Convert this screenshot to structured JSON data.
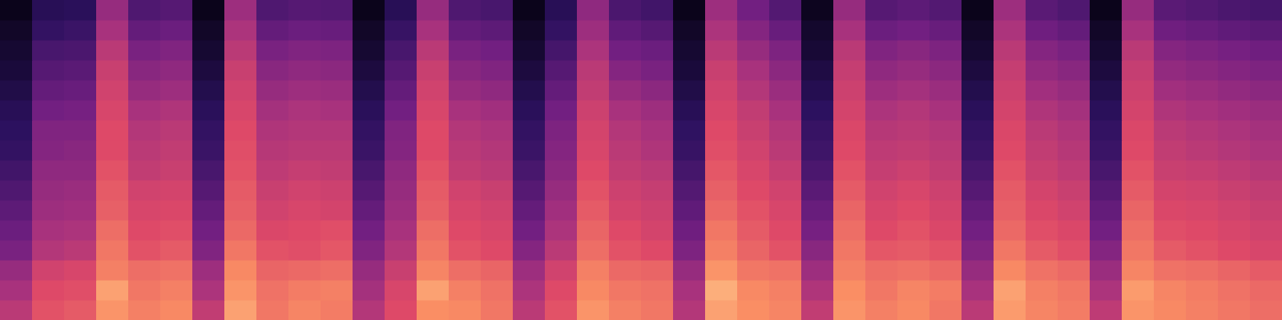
{
  "chart_data": {
    "type": "heatmap",
    "tick_labels": false,
    "color_range": [
      0,
      100
    ],
    "cells": [
      [
        60,
        72,
        74,
        86,
        82,
        84,
        62,
        88,
        80,
        83,
        81,
        58,
        70,
        85,
        84,
        80,
        60,
        72,
        86,
        82,
        80,
        58,
        88,
        85,
        83,
        62,
        86,
        82,
        84,
        80,
        60,
        87,
        83,
        81,
        61,
        86,
        84,
        82,
        80,
        78
      ],
      [
        55,
        70,
        71,
        88,
        80,
        82,
        56,
        86,
        79,
        81,
        82,
        54,
        68,
        88,
        82,
        79,
        56,
        70,
        84,
        80,
        79,
        55,
        90,
        84,
        82,
        57,
        85,
        80,
        83,
        81,
        55,
        88,
        82,
        80,
        56,
        87,
        83,
        81,
        79,
        77
      ],
      [
        50,
        66,
        68,
        82,
        78,
        79,
        52,
        84,
        76,
        77,
        78,
        50,
        64,
        83,
        78,
        76,
        52,
        66,
        82,
        77,
        76,
        50,
        86,
        80,
        79,
        52,
        82,
        78,
        79,
        77,
        50,
        84,
        79,
        77,
        51,
        83,
        79,
        78,
        76,
        74
      ],
      [
        42,
        58,
        60,
        80,
        72,
        74,
        44,
        80,
        72,
        71,
        73,
        44,
        58,
        80,
        72,
        70,
        45,
        60,
        78,
        72,
        70,
        43,
        82,
        76,
        72,
        46,
        80,
        73,
        74,
        72,
        44,
        80,
        74,
        71,
        45,
        80,
        74,
        72,
        70,
        68
      ],
      [
        38,
        55,
        56,
        78,
        70,
        71,
        40,
        77,
        69,
        70,
        71,
        40,
        55,
        78,
        70,
        68,
        40,
        56,
        76,
        70,
        67,
        39,
        80,
        74,
        70,
        41,
        78,
        70,
        72,
        69,
        40,
        77,
        71,
        69,
        40,
        78,
        71,
        70,
        68,
        66
      ],
      [
        34,
        52,
        53,
        75,
        68,
        69,
        36,
        75,
        66,
        68,
        67,
        36,
        52,
        75,
        68,
        66,
        36,
        53,
        74,
        67,
        65,
        35,
        77,
        72,
        68,
        37,
        76,
        68,
        70,
        67,
        36,
        75,
        69,
        66,
        36,
        76,
        69,
        68,
        66,
        64
      ],
      [
        30,
        50,
        51,
        74,
        66,
        67,
        32,
        74,
        64,
        66,
        65,
        32,
        50,
        74,
        66,
        64,
        32,
        50,
        72,
        65,
        63,
        31,
        75,
        70,
        66,
        33,
        74,
        66,
        68,
        65,
        32,
        74,
        67,
        64,
        32,
        74,
        67,
        66,
        64,
        62
      ],
      [
        26,
        48,
        48,
        72,
        62,
        64,
        28,
        72,
        61,
        63,
        62,
        28,
        48,
        72,
        62,
        60,
        28,
        47,
        70,
        62,
        60,
        27,
        73,
        68,
        63,
        29,
        72,
        63,
        65,
        62,
        28,
        72,
        64,
        61,
        28,
        72,
        64,
        63,
        61,
        59
      ],
      [
        22,
        45,
        46,
        70,
        60,
        62,
        24,
        71,
        59,
        60,
        60,
        24,
        45,
        70,
        60,
        58,
        24,
        45,
        68,
        60,
        57,
        23,
        71,
        66,
        60,
        25,
        70,
        61,
        62,
        60,
        24,
        70,
        62,
        59,
        24,
        70,
        62,
        60,
        58,
        56
      ],
      [
        20,
        44,
        44,
        70,
        58,
        60,
        22,
        70,
        57,
        58,
        58,
        22,
        44,
        70,
        58,
        56,
        22,
        43,
        67,
        58,
        55,
        21,
        70,
        64,
        58,
        23,
        69,
        59,
        60,
        58,
        22,
        69,
        60,
        57,
        22,
        69,
        60,
        58,
        56,
        54
      ],
      [
        18,
        40,
        41,
        68,
        55,
        57,
        19,
        68,
        54,
        56,
        55,
        19,
        40,
        68,
        55,
        53,
        19,
        40,
        65,
        55,
        52,
        18,
        68,
        62,
        55,
        20,
        67,
        56,
        58,
        55,
        19,
        67,
        57,
        54,
        19,
        67,
        57,
        55,
        53,
        51
      ],
      [
        15,
        36,
        37,
        66,
        50,
        52,
        16,
        66,
        50,
        52,
        51,
        16,
        36,
        66,
        50,
        48,
        16,
        36,
        62,
        50,
        47,
        15,
        66,
        58,
        51,
        17,
        65,
        52,
        54,
        51,
        16,
        65,
        53,
        50,
        16,
        65,
        53,
        51,
        49,
        47
      ],
      [
        12,
        32,
        33,
        64,
        46,
        48,
        13,
        64,
        46,
        48,
        47,
        13,
        32,
        64,
        46,
        44,
        13,
        32,
        60,
        45,
        42,
        12,
        64,
        55,
        47,
        14,
        63,
        48,
        50,
        47,
        13,
        63,
        49,
        46,
        13,
        63,
        49,
        47,
        45,
        43
      ],
      [
        10,
        28,
        29,
        60,
        42,
        44,
        10,
        60,
        42,
        44,
        43,
        10,
        28,
        60,
        42,
        40,
        10,
        27,
        56,
        40,
        38,
        10,
        60,
        50,
        43,
        11,
        60,
        44,
        46,
        43,
        10,
        60,
        45,
        42,
        10,
        60,
        45,
        43,
        41,
        39
      ],
      [
        8,
        22,
        24,
        55,
        36,
        38,
        8,
        56,
        36,
        38,
        37,
        8,
        23,
        55,
        36,
        34,
        8,
        22,
        52,
        35,
        32,
        8,
        56,
        45,
        37,
        9,
        55,
        38,
        40,
        37,
        8,
        56,
        39,
        36,
        8,
        55,
        39,
        37,
        35,
        33
      ],
      [
        5,
        18,
        19,
        50,
        30,
        32,
        5,
        52,
        30,
        32,
        31,
        5,
        18,
        50,
        30,
        28,
        5,
        18,
        48,
        29,
        26,
        5,
        52,
        40,
        31,
        6,
        50,
        32,
        34,
        31,
        5,
        52,
        33,
        30,
        5,
        50,
        33,
        31,
        29,
        27
      ]
    ]
  }
}
